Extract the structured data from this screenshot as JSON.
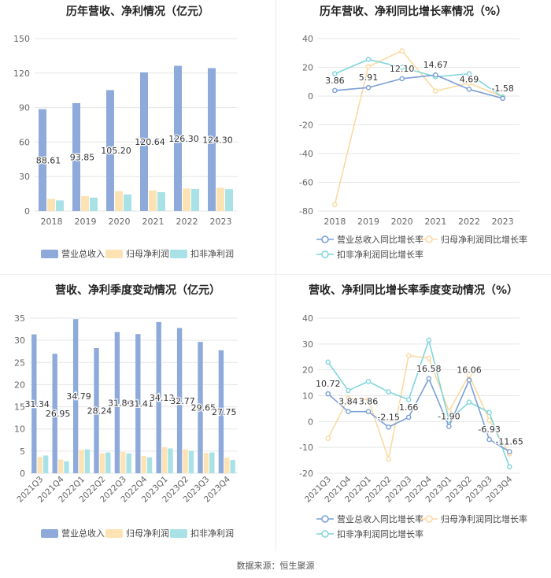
{
  "titles": {
    "tl": "历年营收、净利情况（亿元）",
    "tr": "历年营收、净利同比增长率情况（%）",
    "bl": "营收、净利季度变动情况（亿元）",
    "br": "营收、净利同比增长率季度变动情况（%）"
  },
  "source": "数据来源：恒生聚源",
  "colors": {
    "revenue": "#8eaadb",
    "parent_np": "#fde3b4",
    "deducted_np": "#a8e2e6"
  },
  "chart_data": [
    {
      "type": "bar",
      "categories": [
        "2018",
        "2019",
        "2020",
        "2021",
        "2022",
        "2023"
      ],
      "ylim": [
        0,
        150
      ],
      "yticks": [
        0,
        30,
        60,
        90,
        120,
        150
      ],
      "series": [
        {
          "name": "营业总收入",
          "values": [
            88.61,
            93.85,
            105.2,
            120.64,
            126.3,
            124.3
          ]
        },
        {
          "name": "归母净利润",
          "values": [
            10.6,
            13.1,
            17.3,
            17.9,
            19.6,
            20.2
          ]
        },
        {
          "name": "扣非净利润",
          "values": [
            9.3,
            11.7,
            14.4,
            16.4,
            19.2,
            19.1
          ]
        }
      ],
      "value_labels": [
        "88.61",
        "93.85",
        "105.20",
        "120.64",
        "126.30",
        "124.30"
      ]
    },
    {
      "type": "line",
      "categories": [
        "2018",
        "2019",
        "2020",
        "2021",
        "2022",
        "2023"
      ],
      "ylim": [
        -80,
        40
      ],
      "yticks": [
        -80,
        -60,
        -40,
        -20,
        0,
        20,
        40
      ],
      "series": [
        {
          "name": "营业总收入同比增长率",
          "values": [
            3.86,
            5.91,
            12.1,
            14.67,
            4.69,
            -1.58
          ]
        },
        {
          "name": "归母净利润同比增长率",
          "values": [
            -75.5,
            20.5,
            31.5,
            3.5,
            9.0,
            -0.5
          ]
        },
        {
          "name": "扣非净利润同比增长率",
          "values": [
            15.5,
            25.5,
            20.0,
            13.5,
            15.5,
            -0.8
          ]
        }
      ],
      "value_labels": [
        "3.86",
        "5.91",
        "12.10",
        "14.67",
        "4.69",
        "-1.58"
      ]
    },
    {
      "type": "bar",
      "categories": [
        "2021Q3",
        "2021Q4",
        "2022Q1",
        "2022Q2",
        "2022Q3",
        "2022Q4",
        "2023Q1",
        "2023Q2",
        "2023Q3",
        "2023Q4"
      ],
      "ylim": [
        0,
        35
      ],
      "yticks": [
        0,
        5,
        10,
        15,
        20,
        25,
        30,
        35
      ],
      "series": [
        {
          "name": "营业总收入",
          "values": [
            31.34,
            26.95,
            34.79,
            28.24,
            31.86,
            31.41,
            34.13,
            32.77,
            29.65,
            27.75
          ]
        },
        {
          "name": "归母净利润",
          "values": [
            3.7,
            3.1,
            5.3,
            4.5,
            4.8,
            3.9,
            5.9,
            5.4,
            4.6,
            3.5
          ]
        },
        {
          "name": "扣非净利润",
          "values": [
            4.0,
            2.7,
            5.4,
            4.7,
            4.5,
            3.6,
            5.6,
            5.0,
            4.7,
            3.0
          ]
        }
      ],
      "value_labels": [
        "31.34",
        "26.95",
        "34.79",
        "28.24",
        "31.86",
        "31.41",
        "34.13",
        "32.77",
        "29.65",
        "27.75"
      ]
    },
    {
      "type": "line",
      "categories": [
        "2021Q3",
        "2021Q4",
        "2022Q1",
        "2022Q2",
        "2022Q3",
        "2022Q4",
        "2023Q1",
        "2023Q2",
        "2023Q3",
        "2023Q4"
      ],
      "ylim": [
        -20,
        40
      ],
      "yticks": [
        -20,
        -10,
        0,
        10,
        20,
        30,
        40
      ],
      "series": [
        {
          "name": "营业总收入同比增长率",
          "values": [
            10.72,
            3.84,
            3.86,
            -2.15,
            1.66,
            16.58,
            -1.9,
            16.06,
            -6.93,
            -11.65
          ]
        },
        {
          "name": "归母净利润同比增长率",
          "values": [
            -6.5,
            9.0,
            8.5,
            -14.5,
            25.5,
            24.5,
            4.0,
            18.0,
            0.5,
            -12.5
          ]
        },
        {
          "name": "扣非净利润同比增长率",
          "values": [
            23.0,
            12.0,
            15.5,
            11.5,
            8.5,
            31.5,
            0.5,
            7.5,
            3.5,
            -17.5
          ]
        }
      ],
      "value_labels": [
        "10.72",
        "3.84",
        "3.86",
        "-2.15",
        "1.66",
        "16.58",
        "-1.90",
        "16.06",
        "-6.93",
        "-11.65"
      ]
    }
  ],
  "legends": {
    "bar": [
      "营业总收入",
      "归母净利润",
      "扣非净利润"
    ],
    "line": [
      "营业总收入同比增长率",
      "归母净利润同比增长率",
      "扣非净利润同比增长率"
    ]
  }
}
